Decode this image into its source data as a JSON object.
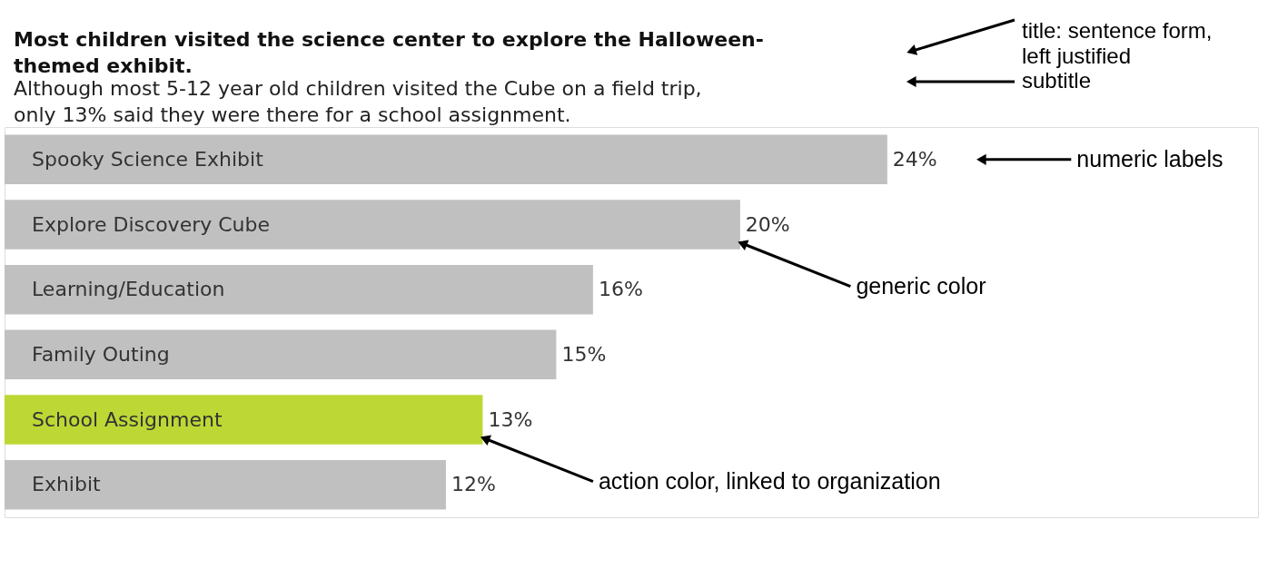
{
  "chart_data": {
    "type": "bar",
    "orientation": "horizontal",
    "title": "Most children visited the science center to explore the Halloween-themed exhibit.",
    "subtitle": "Although most 5-12 year old children visited the Cube on a field trip, only 13% said they were there for a school assignment.",
    "categories": [
      "Spooky Science Exhibit",
      "Explore Discovery Cube",
      "Learning/Education",
      "Family Outing",
      "School Assignment",
      "Exhibit"
    ],
    "values": [
      24,
      20,
      16,
      15,
      13,
      12
    ],
    "colors": [
      "#c0c0c0",
      "#c0c0c0",
      "#c0c0c0",
      "#c0c0c0",
      "#bdd835",
      "#c0c0c0"
    ],
    "value_labels": [
      "24%",
      "20%",
      "16%",
      "15%",
      "13%",
      "12%"
    ],
    "annotations": [
      "title: sentence form, left justified",
      "subtitle",
      "numeric labels",
      "generic color",
      "action color, linked to organization"
    ]
  }
}
